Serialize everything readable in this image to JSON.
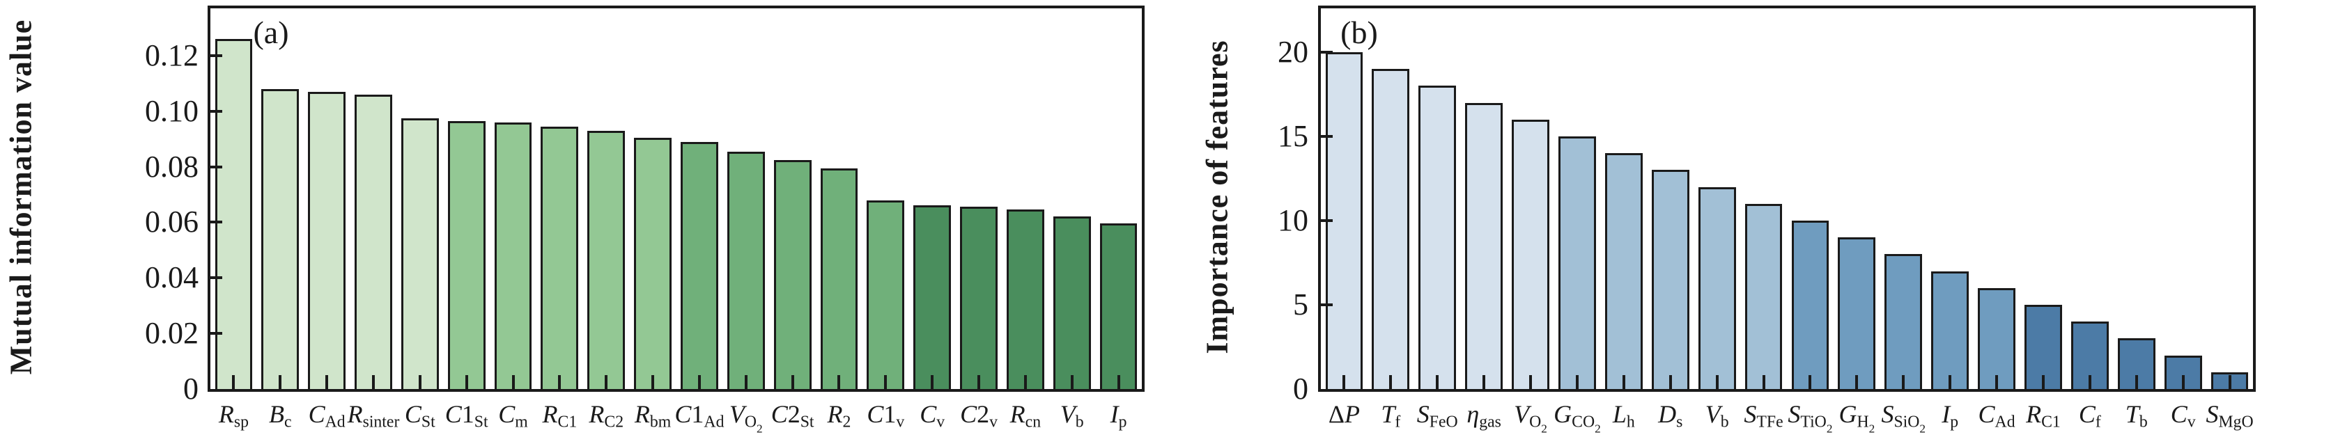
{
  "figure": {
    "background": "#ffffff",
    "spine_color": "#1a1a1a"
  },
  "chart_data": [
    {
      "id": "a",
      "type": "bar",
      "panel_label": "(a)",
      "title": "",
      "xlabel": "",
      "ylabel": "Mutual information value",
      "grid": false,
      "legend": false,
      "ylim": [
        0,
        0.137
      ],
      "yticks": [
        {
          "v": 0,
          "label": "0"
        },
        {
          "v": 0.02,
          "label": "0.02"
        },
        {
          "v": 0.04,
          "label": "0.04"
        },
        {
          "v": 0.06,
          "label": "0.06"
        },
        {
          "v": 0.08,
          "label": "0.08"
        },
        {
          "v": 0.1,
          "label": "0.10"
        },
        {
          "v": 0.12,
          "label": "0.12"
        }
      ],
      "bar_colors": [
        "#d0e5cb",
        "#93c894",
        "#70b07a",
        "#4a8e5d"
      ],
      "color_group_size": 5,
      "categories": [
        "R_sp",
        "B_c",
        "C_Ad",
        "R_sinter",
        "C_St",
        "C1_St",
        "C_m",
        "R_C1",
        "R_C2",
        "R_bm",
        "C1_Ad",
        "V_O2",
        "C2_St",
        "R_2",
        "C1_v",
        "C_v",
        "C2_v",
        "R_cn",
        "V_b",
        "I_p"
      ],
      "values": [
        0.126,
        0.108,
        0.107,
        0.106,
        0.0975,
        0.0965,
        0.096,
        0.0945,
        0.093,
        0.0905,
        0.089,
        0.0855,
        0.0825,
        0.0795,
        0.068,
        0.066,
        0.0655,
        0.0645,
        0.062,
        0.0595
      ],
      "tick_label_segments": [
        [
          {
            "t": "R",
            "s": "it"
          },
          {
            "t": "sp",
            "s": "sub"
          }
        ],
        [
          {
            "t": "B",
            "s": "it"
          },
          {
            "t": "c",
            "s": "sub"
          }
        ],
        [
          {
            "t": "C",
            "s": "it"
          },
          {
            "t": "Ad",
            "s": "sub"
          }
        ],
        [
          {
            "t": "R",
            "s": "it"
          },
          {
            "t": "sinter",
            "s": "sub"
          }
        ],
        [
          {
            "t": "C",
            "s": "it"
          },
          {
            "t": "St",
            "s": "sub"
          }
        ],
        [
          {
            "t": "C",
            "s": "it"
          },
          {
            "t": "1",
            "s": "rm"
          },
          {
            "t": "St",
            "s": "sub"
          }
        ],
        [
          {
            "t": "C",
            "s": "it"
          },
          {
            "t": "m",
            "s": "sub"
          }
        ],
        [
          {
            "t": "R",
            "s": "it"
          },
          {
            "t": "C1",
            "s": "sub"
          }
        ],
        [
          {
            "t": "R",
            "s": "it"
          },
          {
            "t": "C2",
            "s": "sub"
          }
        ],
        [
          {
            "t": "R",
            "s": "it"
          },
          {
            "t": "bm",
            "s": "sub"
          }
        ],
        [
          {
            "t": "C",
            "s": "it"
          },
          {
            "t": "1",
            "s": "rm"
          },
          {
            "t": "Ad",
            "s": "sub"
          }
        ],
        [
          {
            "t": "V",
            "s": "it"
          },
          {
            "t": "O",
            "s": "sub"
          },
          {
            "t": "2",
            "s": "ss"
          }
        ],
        [
          {
            "t": "C",
            "s": "it"
          },
          {
            "t": "2",
            "s": "rm"
          },
          {
            "t": "St",
            "s": "sub"
          }
        ],
        [
          {
            "t": "R",
            "s": "it"
          },
          {
            "t": "2",
            "s": "sub"
          }
        ],
        [
          {
            "t": "C",
            "s": "it"
          },
          {
            "t": "1",
            "s": "rm"
          },
          {
            "t": "v",
            "s": "sub"
          }
        ],
        [
          {
            "t": "C",
            "s": "it"
          },
          {
            "t": "v",
            "s": "sub"
          }
        ],
        [
          {
            "t": "C",
            "s": "it"
          },
          {
            "t": "2",
            "s": "rm"
          },
          {
            "t": "v",
            "s": "sub"
          }
        ],
        [
          {
            "t": "R",
            "s": "it"
          },
          {
            "t": "cn",
            "s": "sub"
          }
        ],
        [
          {
            "t": "V",
            "s": "it"
          },
          {
            "t": "b",
            "s": "sub"
          }
        ],
        [
          {
            "t": "I",
            "s": "it"
          },
          {
            "t": "p",
            "s": "sub"
          }
        ]
      ]
    },
    {
      "id": "b",
      "type": "bar",
      "panel_label": "(b)",
      "title": "",
      "xlabel": "",
      "ylabel": "Importance of features",
      "grid": false,
      "legend": false,
      "ylim": [
        0,
        22.6
      ],
      "yticks": [
        {
          "v": 0,
          "label": "0"
        },
        {
          "v": 5,
          "label": "5"
        },
        {
          "v": 10,
          "label": "10"
        },
        {
          "v": 15,
          "label": "15"
        },
        {
          "v": 20,
          "label": "20"
        }
      ],
      "bar_colors": [
        "#d5e1ed",
        "#a2c0d6",
        "#6f9cbf",
        "#4c7ba6"
      ],
      "color_group_size": 5,
      "categories": [
        "ΔP",
        "T_f",
        "S_FeO",
        "η_gas",
        "V_O2",
        "G_CO2",
        "L_h",
        "D_s",
        "V_b",
        "S_TFe",
        "S_TiO2",
        "G_H2",
        "S_SiO2",
        "I_p",
        "C_Ad",
        "R_C1",
        "C_f",
        "T_b",
        "C_v",
        "S_MgO"
      ],
      "values": [
        20,
        19,
        18,
        17,
        16,
        15,
        14,
        13,
        12,
        11,
        10,
        9,
        8,
        7,
        6,
        5,
        4,
        3,
        2,
        1
      ],
      "tick_label_segments": [
        [
          {
            "t": "Δ",
            "s": "rm"
          },
          {
            "t": "P",
            "s": "it"
          }
        ],
        [
          {
            "t": "T",
            "s": "it"
          },
          {
            "t": "f",
            "s": "sub"
          }
        ],
        [
          {
            "t": "S",
            "s": "it"
          },
          {
            "t": "FeO",
            "s": "sub"
          }
        ],
        [
          {
            "t": "η",
            "s": "it"
          },
          {
            "t": "gas",
            "s": "sub"
          }
        ],
        [
          {
            "t": "V",
            "s": "it"
          },
          {
            "t": "O",
            "s": "sub"
          },
          {
            "t": "2",
            "s": "ss"
          }
        ],
        [
          {
            "t": "G",
            "s": "it"
          },
          {
            "t": "CO",
            "s": "sub"
          },
          {
            "t": "2",
            "s": "ss"
          }
        ],
        [
          {
            "t": "L",
            "s": "it"
          },
          {
            "t": "h",
            "s": "sub"
          }
        ],
        [
          {
            "t": "D",
            "s": "it"
          },
          {
            "t": "s",
            "s": "sub"
          }
        ],
        [
          {
            "t": "V",
            "s": "it"
          },
          {
            "t": "b",
            "s": "sub"
          }
        ],
        [
          {
            "t": "S",
            "s": "it"
          },
          {
            "t": "TFe",
            "s": "sub"
          }
        ],
        [
          {
            "t": "S",
            "s": "it"
          },
          {
            "t": "TiO",
            "s": "sub"
          },
          {
            "t": "2",
            "s": "ss"
          }
        ],
        [
          {
            "t": "G",
            "s": "it"
          },
          {
            "t": "H",
            "s": "sub"
          },
          {
            "t": "2",
            "s": "ss"
          }
        ],
        [
          {
            "t": "S",
            "s": "it"
          },
          {
            "t": "SiO",
            "s": "sub"
          },
          {
            "t": "2",
            "s": "ss"
          }
        ],
        [
          {
            "t": "I",
            "s": "it"
          },
          {
            "t": "p",
            "s": "sub"
          }
        ],
        [
          {
            "t": "C",
            "s": "it"
          },
          {
            "t": "Ad",
            "s": "sub"
          }
        ],
        [
          {
            "t": "R",
            "s": "it"
          },
          {
            "t": "C1",
            "s": "sub"
          }
        ],
        [
          {
            "t": "C",
            "s": "it"
          },
          {
            "t": "f",
            "s": "sub"
          }
        ],
        [
          {
            "t": "T",
            "s": "it"
          },
          {
            "t": "b",
            "s": "sub"
          }
        ],
        [
          {
            "t": "C",
            "s": "it"
          },
          {
            "t": "v",
            "s": "sub"
          }
        ],
        [
          {
            "t": "S",
            "s": "it"
          },
          {
            "t": "MgO",
            "s": "sub"
          }
        ]
      ]
    }
  ]
}
